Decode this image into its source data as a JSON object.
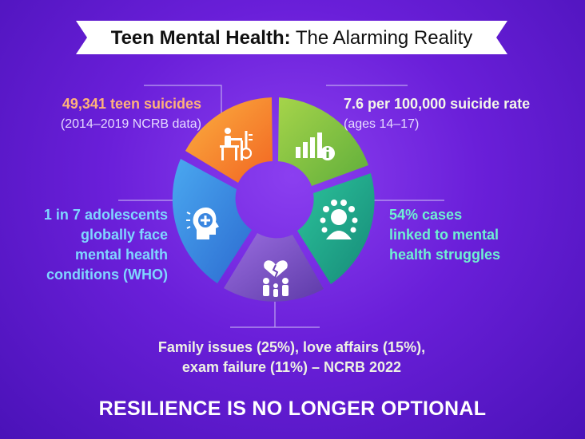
{
  "title": {
    "strong": "Teen Mental Health:",
    "light": "The Alarming Reality"
  },
  "stats": {
    "suicides": {
      "headline": "49,341 teen suicides",
      "sub": "(2014–2019 NCRB data)"
    },
    "rate": {
      "headline": "7.6 per 100,000 suicide rate",
      "sub": "(ages 14–17)"
    },
    "adolescents": {
      "line1": "1 in 7 adolescents",
      "line2": "globally face",
      "line3": "mental health",
      "line4": "conditions (WHO)"
    },
    "mental": {
      "line1": "54% cases",
      "line2": "linked to mental",
      "line3": "health struggles"
    },
    "family": {
      "line1": "Family issues (25%), love affairs (15%),",
      "line2": "exam failure (11%) – NCRB 2022"
    }
  },
  "tagline": "RESILIENCE IS NO LONGER OPTIONAL",
  "colors": {
    "orange": "#f7931e",
    "green": "#8cc63f",
    "teal": "#1fa98a",
    "purple": "#7b52c8",
    "blue": "#3d8de0"
  },
  "icons": [
    "student-stress-icon",
    "bar-chart-info-icon",
    "crowd-head-icon",
    "broken-heart-family-icon",
    "head-medical-icon"
  ]
}
